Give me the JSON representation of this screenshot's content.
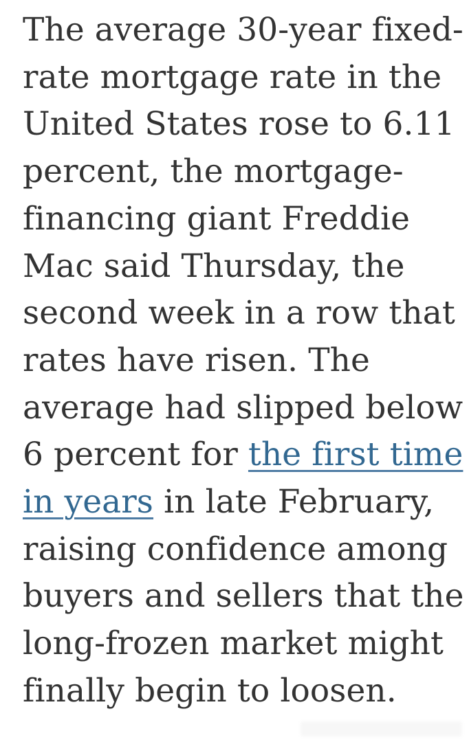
{
  "page": {
    "background_color": "#ffffff"
  },
  "article": {
    "text_color": "#333333",
    "full_text": "The average 30-year fixed-rate mortgage rate in the United States rose to 6.11 percent, the mortgage-financing giant Freddie Mac said Thursday, the second week in a row that rates have risen. The average had slipped below 6 percent for the first time in years in late February, raising confidence among buyers and sellers that the long-frozen market might finally begin to loosen.",
    "link": {
      "text": "the first time in years",
      "color": "#326891"
    },
    "lines": [
      {
        "segments": [
          {
            "text": "The average 30-year fixed-",
            "link": false
          }
        ]
      },
      {
        "segments": [
          {
            "text": "rate mortgage rate in the",
            "link": false
          }
        ]
      },
      {
        "segments": [
          {
            "text": "United States rose to 6.11",
            "link": false
          }
        ]
      },
      {
        "segments": [
          {
            "text": "percent, the mortgage-",
            "link": false
          }
        ]
      },
      {
        "segments": [
          {
            "text": "financing giant Freddie",
            "link": false
          }
        ]
      },
      {
        "segments": [
          {
            "text": "Mac said Thursday, the",
            "link": false
          }
        ]
      },
      {
        "segments": [
          {
            "text": "second week in a row that",
            "link": false
          }
        ]
      },
      {
        "segments": [
          {
            "text": "rates have risen. The",
            "link": false
          }
        ]
      },
      {
        "segments": [
          {
            "text": "average had slipped below",
            "link": false
          }
        ]
      },
      {
        "segments": [
          {
            "text": "6 percent for ",
            "link": false
          },
          {
            "text": "the first time",
            "link": true
          }
        ]
      },
      {
        "segments": [
          {
            "text": "in years",
            "link": true
          },
          {
            "text": " in late February,",
            "link": false
          }
        ]
      },
      {
        "segments": [
          {
            "text": "raising confidence among",
            "link": false
          }
        ]
      },
      {
        "segments": [
          {
            "text": "buyers and sellers that the",
            "link": false
          }
        ]
      },
      {
        "segments": [
          {
            "text": "long-frozen market might",
            "link": false
          }
        ]
      },
      {
        "segments": [
          {
            "text": "finally begin to loosen.",
            "link": false
          }
        ]
      }
    ]
  }
}
